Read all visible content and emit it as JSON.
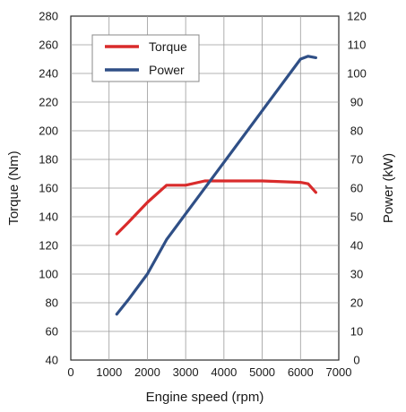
{
  "chart_data": {
    "type": "line",
    "xlabel": "Engine speed (rpm)",
    "ylabel": "Torque (Nm)",
    "y2label": "Power (kW)",
    "xlim": [
      0,
      7000
    ],
    "ylim": [
      40,
      280
    ],
    "y2lim": [
      0,
      120
    ],
    "x_ticks": [
      "0",
      "1000",
      "2000",
      "3000",
      "4000",
      "5000",
      "6000",
      "7000"
    ],
    "y_ticks": [
      "40",
      "60",
      "80",
      "100",
      "120",
      "140",
      "160",
      "180",
      "200",
      "220",
      "240",
      "260",
      "280"
    ],
    "y2_ticks": [
      "0",
      "10",
      "20",
      "30",
      "40",
      "50",
      "60",
      "70",
      "80",
      "90",
      "100",
      "110",
      "120"
    ],
    "grid": true,
    "legend_position": "top-left",
    "series": [
      {
        "name": "Torque",
        "axis": "left",
        "color": "#d92b2b",
        "x": [
          1200,
          1500,
          2000,
          2500,
          3000,
          3500,
          4000,
          5000,
          6000,
          6200,
          6400
        ],
        "y": [
          128,
          136,
          150,
          162,
          162,
          165,
          165,
          165,
          164,
          163,
          157
        ]
      },
      {
        "name": "Power",
        "axis": "right",
        "color": "#2f4f86",
        "x": [
          1200,
          1500,
          2000,
          2500,
          3000,
          4000,
          5000,
          6000,
          6200,
          6400
        ],
        "y": [
          16,
          21,
          30,
          42,
          51,
          69,
          87,
          105,
          106,
          105.5
        ]
      }
    ]
  }
}
